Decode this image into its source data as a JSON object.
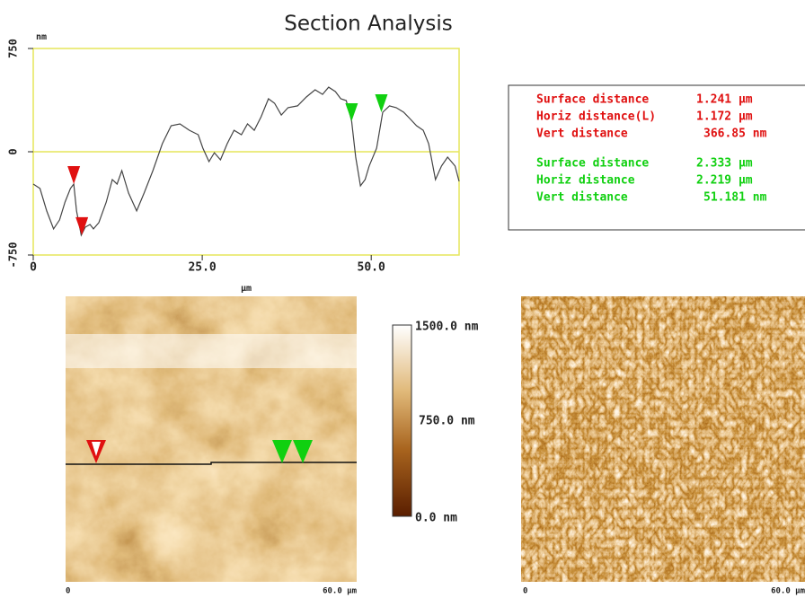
{
  "chart_data": {
    "type": "line",
    "title": "Section Analysis",
    "y_label": "nm",
    "x_label": "µm",
    "xlim": [
      0,
      63
    ],
    "xticks": [
      0,
      {
        "value": 25,
        "label": "25.0"
      },
      {
        "value": 50,
        "label": "50.0"
      }
    ],
    "ylim": [
      -750,
      750
    ],
    "yticks": [
      -750,
      0,
      750
    ],
    "zero_line": true,
    "frame_color": "#e6e65a",
    "series": [
      {
        "color": "#444444",
        "x": [
          0,
          1,
          2,
          3,
          3.9,
          4.7,
          5.5,
          6,
          6.4,
          7.1,
          7.7,
          8.4,
          8.9,
          9.7,
          10.8,
          11.7,
          12.4,
          13.1,
          14.1,
          15.3,
          16.4,
          17.7,
          19.1,
          20.4,
          21.7,
          23.1,
          24.4,
          25.1,
          26,
          26.8,
          27.7,
          28.7,
          29.7,
          30.8,
          31.7,
          32.7,
          33.7,
          34.8,
          35.7,
          36.7,
          37.7,
          39.1,
          40.4,
          41.7,
          42.8,
          43.7,
          44.7,
          45.5,
          46.3,
          47.1,
          47.7,
          48.4,
          49.1,
          49.7,
          50.8,
          51.7,
          52.7,
          53.7,
          54.8,
          55.7,
          56.7,
          57.7,
          58.5,
          59.5,
          60.4,
          61.3,
          62.4,
          63
        ],
        "values": [
          -235,
          -267,
          -430,
          -560,
          -495,
          -365,
          -267,
          -235,
          -430,
          -606,
          -548,
          -528,
          -560,
          -515,
          -365,
          -202,
          -235,
          -137,
          -300,
          -430,
          -300,
          -137,
          59,
          189,
          202,
          156,
          124,
          26,
          -72,
          -7,
          -59,
          59,
          156,
          124,
          202,
          156,
          254,
          385,
          352,
          267,
          320,
          333,
          398,
          450,
          417,
          469,
          437,
          385,
          372,
          222,
          -39,
          -248,
          -202,
          -104,
          26,
          287,
          333,
          320,
          287,
          241,
          189,
          156,
          59,
          -202,
          -104,
          -39,
          -104,
          -215
        ]
      }
    ],
    "cursors": [
      {
        "color": "#e01010",
        "x": 6,
        "y": -235
      },
      {
        "color": "#e01010",
        "x": 7.2,
        "y": -606
      },
      {
        "color": "#10d010",
        "x": 47.1,
        "y": 222
      },
      {
        "color": "#10d010",
        "x": 51.5,
        "y": 287
      }
    ]
  },
  "measurements": [
    {
      "color": "#e01010",
      "rows": [
        [
          "Surface distance",
          "1.241 µm"
        ],
        [
          "Horiz distance(L)",
          "1.172 µm"
        ],
        [
          "Vert distance",
          "366.85 nm"
        ]
      ]
    },
    {
      "color": "#10d010",
      "rows": [
        [
          "Surface distance",
          "2.333 µm"
        ],
        [
          "Horiz distance",
          "2.219 µm"
        ],
        [
          "Vert distance",
          "51.181 nm"
        ]
      ]
    }
  ],
  "height_image": {
    "x_start": "0",
    "x_end": "60.0 µm"
  },
  "colorbar": {
    "top": "1500.0 nm",
    "middle": "750.0 nm",
    "bottom": "0.0 nm"
  },
  "amplitude_image": {
    "x_start": "0",
    "x_end": "60.0 µm"
  }
}
